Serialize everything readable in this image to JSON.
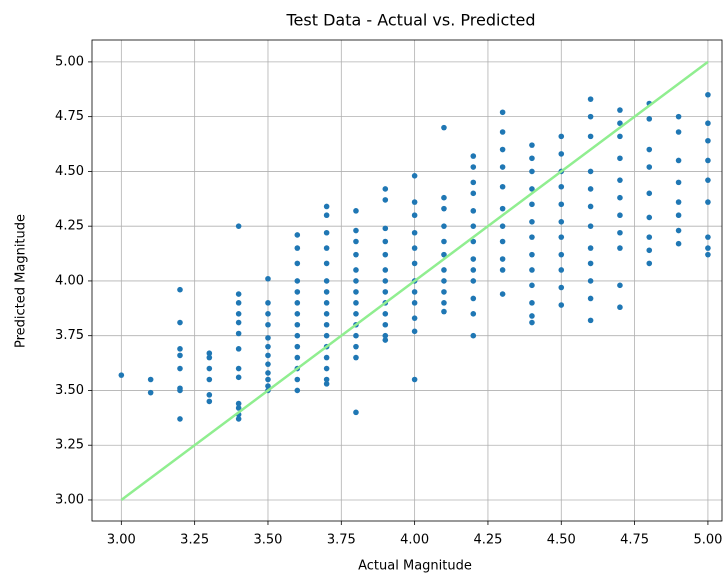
{
  "chart_data": {
    "type": "scatter",
    "title": "Test Data - Actual vs. Predicted",
    "x_label": "Actual Magnitude",
    "y_label": "Predicted Magnitude",
    "color": "#1f77b4",
    "grid": true,
    "xlim": [
      2.9,
      5.048
    ],
    "ylim": [
      2.904,
      5.1
    ],
    "xticks": [
      {
        "value": 3,
        "label": "3.00"
      },
      {
        "value": 3.25,
        "label": "3.25"
      },
      {
        "value": 3.5,
        "label": "3.50"
      },
      {
        "value": 3.75,
        "label": "3.75"
      },
      {
        "value": 4,
        "label": "4.00"
      },
      {
        "value": 4.25,
        "label": "4.25"
      },
      {
        "value": 4.5,
        "label": "4.50"
      },
      {
        "value": 4.75,
        "label": "4.75"
      },
      {
        "value": 5,
        "label": "5.00"
      }
    ],
    "yticks": [
      {
        "value": 3,
        "label": "3.00"
      },
      {
        "value": 3.25,
        "label": "3.25"
      },
      {
        "value": 3.5,
        "label": "3.50"
      },
      {
        "value": 3.75,
        "label": "3.75"
      },
      {
        "value": 4,
        "label": "4.00"
      },
      {
        "value": 4.25,
        "label": "4.25"
      },
      {
        "value": 4.5,
        "label": "4.50"
      },
      {
        "value": 4.75,
        "label": "4.75"
      },
      {
        "value": 5,
        "label": "5.00"
      }
    ],
    "reference_line": {
      "x": [
        3,
        5
      ],
      "y": [
        3,
        5
      ],
      "color": "#90ee90"
    },
    "x": [
      3.0,
      3.1,
      3.1,
      3.2,
      3.2,
      3.2,
      3.2,
      3.2,
      3.2,
      3.2,
      3.2,
      3.3,
      3.3,
      3.3,
      3.3,
      3.3,
      3.3,
      3.4,
      3.4,
      3.4,
      3.4,
      3.4,
      3.4,
      3.4,
      3.4,
      3.4,
      3.4,
      3.4,
      3.4,
      3.4,
      3.5,
      3.5,
      3.5,
      3.5,
      3.5,
      3.5,
      3.5,
      3.5,
      3.5,
      3.5,
      3.5,
      3.5,
      3.6,
      3.6,
      3.6,
      3.6,
      3.6,
      3.6,
      3.6,
      3.6,
      3.6,
      3.6,
      3.6,
      3.6,
      3.6,
      3.6,
      3.7,
      3.7,
      3.7,
      3.7,
      3.7,
      3.7,
      3.7,
      3.7,
      3.7,
      3.7,
      3.7,
      3.7,
      3.7,
      3.7,
      3.7,
      3.7,
      3.8,
      3.8,
      3.8,
      3.8,
      3.8,
      3.8,
      3.8,
      3.8,
      3.8,
      3.8,
      3.8,
      3.8,
      3.8,
      3.8,
      3.9,
      3.9,
      3.9,
      3.9,
      3.9,
      3.9,
      3.9,
      3.9,
      3.9,
      3.9,
      3.9,
      3.9,
      3.9,
      4.0,
      4.0,
      4.0,
      4.0,
      4.0,
      4.0,
      4.0,
      4.0,
      4.0,
      4.0,
      4.0,
      4.0,
      4.1,
      4.1,
      4.1,
      4.1,
      4.1,
      4.1,
      4.1,
      4.1,
      4.1,
      4.1,
      4.1,
      4.2,
      4.2,
      4.2,
      4.2,
      4.2,
      4.2,
      4.2,
      4.2,
      4.2,
      4.2,
      4.2,
      4.2,
      4.2,
      4.3,
      4.3,
      4.3,
      4.3,
      4.3,
      4.3,
      4.3,
      4.3,
      4.3,
      4.3,
      4.3,
      4.4,
      4.4,
      4.4,
      4.4,
      4.4,
      4.4,
      4.4,
      4.4,
      4.4,
      4.4,
      4.4,
      4.4,
      4.4,
      4.5,
      4.5,
      4.5,
      4.5,
      4.5,
      4.5,
      4.5,
      4.5,
      4.5,
      4.5,
      4.5,
      4.6,
      4.6,
      4.6,
      4.6,
      4.6,
      4.6,
      4.6,
      4.6,
      4.6,
      4.6,
      4.6,
      4.6,
      4.7,
      4.7,
      4.7,
      4.7,
      4.7,
      4.7,
      4.7,
      4.7,
      4.7,
      4.7,
      4.7,
      4.8,
      4.8,
      4.8,
      4.8,
      4.8,
      4.8,
      4.8,
      4.8,
      4.8,
      4.9,
      4.9,
      4.9,
      4.9,
      4.9,
      4.9,
      4.9,
      4.9,
      5.0,
      5.0,
      5.0,
      5.0,
      5.0,
      5.0,
      5.0,
      5.0,
      5.0
    ],
    "y": [
      3.57,
      3.55,
      3.49,
      3.96,
      3.81,
      3.69,
      3.66,
      3.6,
      3.51,
      3.5,
      3.37,
      3.67,
      3.65,
      3.6,
      3.55,
      3.48,
      3.45,
      4.25,
      3.94,
      3.9,
      3.85,
      3.81,
      3.76,
      3.69,
      3.6,
      3.56,
      3.44,
      3.42,
      3.39,
      3.37,
      4.01,
      3.9,
      3.85,
      3.8,
      3.74,
      3.7,
      3.66,
      3.62,
      3.58,
      3.55,
      3.52,
      3.5,
      4.21,
      4.15,
      4.08,
      4.0,
      3.95,
      3.9,
      3.85,
      3.8,
      3.75,
      3.7,
      3.65,
      3.6,
      3.55,
      3.5,
      4.34,
      4.3,
      4.22,
      4.15,
      4.08,
      4.0,
      3.95,
      3.9,
      3.85,
      3.8,
      3.75,
      3.7,
      3.65,
      3.6,
      3.55,
      3.53,
      4.32,
      4.23,
      4.18,
      4.12,
      4.05,
      4.0,
      3.95,
      3.9,
      3.85,
      3.8,
      3.75,
      3.7,
      3.65,
      3.4,
      4.42,
      4.37,
      4.24,
      4.18,
      4.12,
      4.05,
      4.0,
      3.95,
      3.9,
      3.85,
      3.8,
      3.75,
      3.73,
      4.48,
      4.36,
      4.3,
      4.22,
      4.15,
      4.08,
      4.0,
      3.95,
      3.9,
      3.83,
      3.77,
      3.55,
      4.7,
      4.38,
      4.33,
      4.25,
      4.18,
      4.12,
      4.05,
      4.0,
      3.95,
      3.9,
      3.86,
      4.57,
      4.52,
      4.45,
      4.4,
      4.32,
      4.25,
      4.18,
      4.1,
      4.05,
      4.0,
      3.92,
      3.85,
      3.75,
      4.77,
      4.68,
      4.6,
      4.52,
      4.43,
      4.33,
      4.25,
      4.18,
      4.1,
      4.05,
      3.94,
      4.62,
      4.56,
      4.5,
      4.42,
      4.35,
      4.27,
      4.2,
      4.12,
      4.05,
      3.98,
      3.9,
      3.84,
      3.81,
      4.66,
      4.58,
      4.5,
      4.43,
      4.35,
      4.27,
      4.2,
      4.12,
      4.05,
      3.97,
      3.89,
      4.83,
      4.75,
      4.66,
      4.5,
      4.42,
      4.34,
      4.25,
      4.15,
      4.08,
      4.0,
      3.92,
      3.82,
      4.78,
      4.72,
      4.66,
      4.56,
      4.46,
      4.38,
      4.3,
      4.22,
      4.15,
      3.98,
      3.88,
      4.81,
      4.74,
      4.6,
      4.52,
      4.4,
      4.29,
      4.2,
      4.14,
      4.08,
      4.75,
      4.68,
      4.55,
      4.45,
      4.36,
      4.3,
      4.23,
      4.17,
      4.85,
      4.72,
      4.64,
      4.55,
      4.46,
      4.36,
      4.2,
      4.15,
      4.12
    ]
  }
}
